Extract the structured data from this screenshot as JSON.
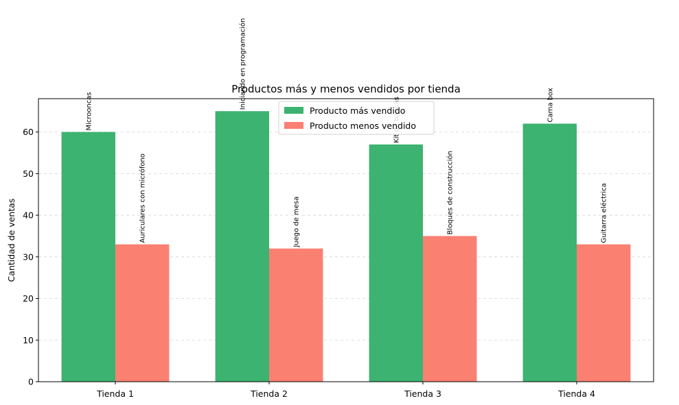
{
  "chart_data": {
    "type": "bar",
    "title": "Productos más y menos vendidos por tienda",
    "xlabel": "",
    "ylabel": "Cantidad de ventas",
    "categories": [
      "Tienda 1",
      "Tienda 2",
      "Tienda 3",
      "Tienda 4"
    ],
    "ylim": [
      0,
      68
    ],
    "yticks": [
      0,
      10,
      20,
      30,
      40,
      50,
      60
    ],
    "grid": "y",
    "legend_position": "top-center",
    "series": [
      {
        "name": "Producto más vendido",
        "color": "#3cb371",
        "values": [
          60,
          65,
          57,
          62
        ],
        "labels": [
          "Microoncas",
          "Iniciando en programación",
          "Kit de bancas",
          "Cama box"
        ]
      },
      {
        "name": "Producto menos vendido",
        "color": "#fa8072",
        "values": [
          33,
          32,
          35,
          33
        ],
        "labels": [
          "Auriculares con micrófono",
          "Juego de mesa",
          "Bloques de construcción",
          "Guitarra eléctrica"
        ]
      }
    ]
  }
}
